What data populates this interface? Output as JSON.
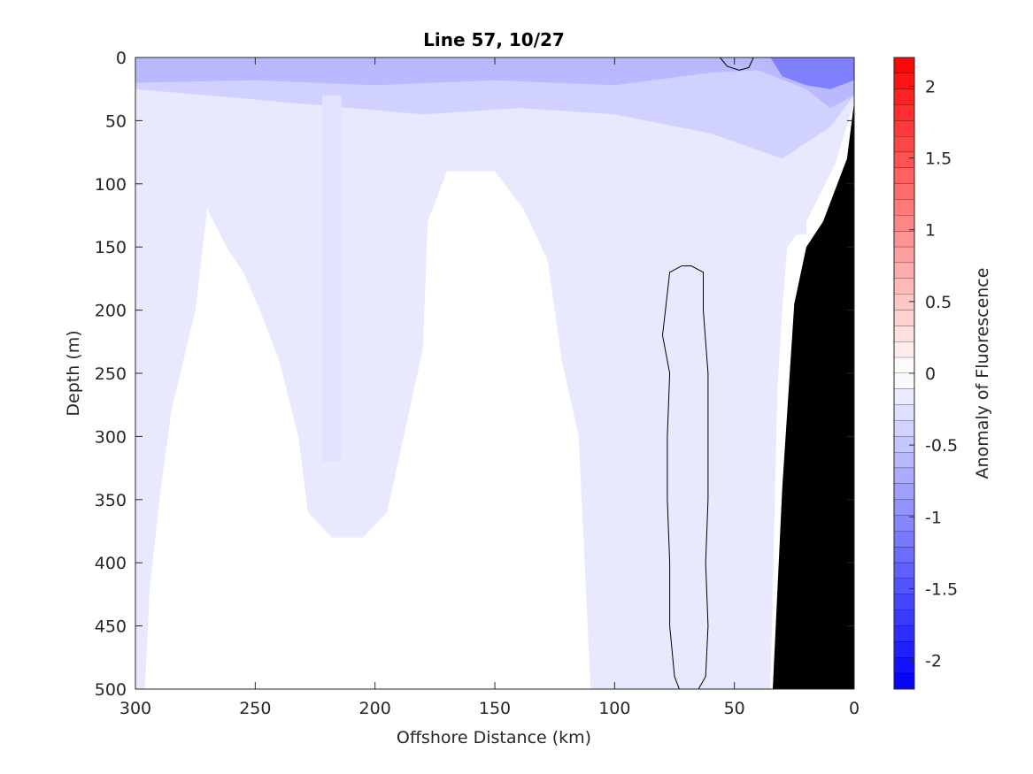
{
  "chart_data": {
    "type": "heatmap",
    "title": "Line 57, 10/27",
    "xlabel": "Offshore Distance (km)",
    "ylabel": "Depth (m)",
    "colorbar_label": "Anomaly of Fluorescence",
    "xlim": [
      300,
      0
    ],
    "ylim": [
      0,
      500
    ],
    "y_reversed": true,
    "x_reversed": true,
    "x_ticks": [
      300,
      250,
      200,
      150,
      100,
      50,
      0
    ],
    "x_tick_labels": [
      "300",
      "250",
      "200",
      "150",
      "100",
      "50",
      "0"
    ],
    "y_ticks": [
      0,
      50,
      100,
      150,
      200,
      250,
      300,
      350,
      400,
      450,
      500
    ],
    "y_tick_labels": [
      "0",
      "50",
      "100",
      "150",
      "200",
      "250",
      "300",
      "350",
      "400",
      "450",
      "500"
    ],
    "colorbar_range": [
      -2.2,
      2.2
    ],
    "colorbar_ticks": [
      2,
      1.5,
      1,
      0.5,
      0,
      -0.5,
      -1,
      -1.5,
      -2
    ],
    "colorbar_tick_labels": [
      "2",
      "1.5",
      "1",
      "0.5",
      "0",
      "-0.5",
      "-1",
      "-1.5",
      "-2"
    ],
    "colormap": {
      "negative": "#0000ff",
      "zero": "#ffffff",
      "positive": "#ff0000"
    },
    "levels": 40,
    "anomaly_regions": [
      {
        "value": -0.2,
        "polygon": [
          [
            300,
            0
          ],
          [
            0,
            0
          ],
          [
            0,
            35
          ],
          [
            8,
            85
          ],
          [
            20,
            130
          ],
          [
            28,
            150
          ],
          [
            30,
            200
          ],
          [
            32,
            260
          ],
          [
            35,
            500
          ],
          [
            110,
            500
          ],
          [
            115,
            300
          ],
          [
            122,
            240
          ],
          [
            128,
            160
          ],
          [
            138,
            120
          ],
          [
            150,
            90
          ],
          [
            170,
            90
          ],
          [
            178,
            130
          ],
          [
            180,
            230
          ],
          [
            188,
            300
          ],
          [
            195,
            360
          ],
          [
            205,
            380
          ],
          [
            218,
            380
          ],
          [
            228,
            360
          ],
          [
            232,
            300
          ],
          [
            240,
            240
          ],
          [
            248,
            200
          ],
          [
            255,
            170
          ],
          [
            262,
            150
          ],
          [
            270,
            120
          ],
          [
            275,
            200
          ],
          [
            285,
            280
          ],
          [
            290,
            350
          ],
          [
            294,
            420
          ],
          [
            296,
            500
          ],
          [
            300,
            500
          ]
        ]
      },
      {
        "value": -0.4,
        "polygon": [
          [
            300,
            0
          ],
          [
            0,
            0
          ],
          [
            0,
            30
          ],
          [
            10,
            55
          ],
          [
            30,
            80
          ],
          [
            60,
            60
          ],
          [
            100,
            45
          ],
          [
            140,
            40
          ],
          [
            180,
            45
          ],
          [
            210,
            40
          ],
          [
            240,
            35
          ],
          [
            270,
            30
          ],
          [
            300,
            25
          ]
        ]
      },
      {
        "value": -0.25,
        "polygon": [
          [
            222,
            30
          ],
          [
            214,
            30
          ],
          [
            214,
            320
          ],
          [
            222,
            320
          ]
        ]
      },
      {
        "value": -0.6,
        "polygon": [
          [
            300,
            0
          ],
          [
            300,
            20
          ],
          [
            250,
            18
          ],
          [
            200,
            22
          ],
          [
            150,
            18
          ],
          [
            100,
            22
          ],
          [
            60,
            12
          ],
          [
            40,
            10
          ],
          [
            20,
            25
          ],
          [
            10,
            40
          ],
          [
            0,
            30
          ],
          [
            0,
            0
          ]
        ]
      },
      {
        "value": -1.1,
        "polygon": [
          [
            35,
            0
          ],
          [
            30,
            15
          ],
          [
            20,
            22
          ],
          [
            10,
            25
          ],
          [
            0,
            18
          ],
          [
            0,
            0
          ]
        ]
      },
      {
        "value": -0.2,
        "polygon": [
          [
            30,
            110
          ],
          [
            20,
            105
          ],
          [
            20,
            140
          ],
          [
            30,
            140
          ]
        ]
      }
    ],
    "zero_contours": [
      {
        "points": [
          [
            68,
            165
          ],
          [
            63,
            170
          ],
          [
            63,
            200
          ],
          [
            61,
            250
          ],
          [
            61,
            300
          ],
          [
            61,
            350
          ],
          [
            62,
            400
          ],
          [
            61,
            450
          ],
          [
            62,
            490
          ],
          [
            65,
            500
          ],
          [
            73,
            500
          ],
          [
            75,
            490
          ],
          [
            77,
            450
          ],
          [
            77,
            400
          ],
          [
            78,
            350
          ],
          [
            78,
            300
          ],
          [
            77,
            250
          ],
          [
            80,
            220
          ],
          [
            77,
            170
          ],
          [
            72,
            165
          ],
          [
            68,
            165
          ]
        ]
      },
      {
        "points": [
          [
            56,
            0
          ],
          [
            53,
            7
          ],
          [
            48,
            10
          ],
          [
            44,
            8
          ],
          [
            42,
            0
          ]
        ]
      }
    ],
    "bathymetry": {
      "fill": "#000000",
      "polygon": [
        [
          0,
          35
        ],
        [
          3,
          80
        ],
        [
          9,
          110
        ],
        [
          13,
          130
        ],
        [
          20,
          150
        ],
        [
          25,
          195
        ],
        [
          30,
          340
        ],
        [
          34,
          500
        ],
        [
          0,
          500
        ]
      ]
    }
  }
}
